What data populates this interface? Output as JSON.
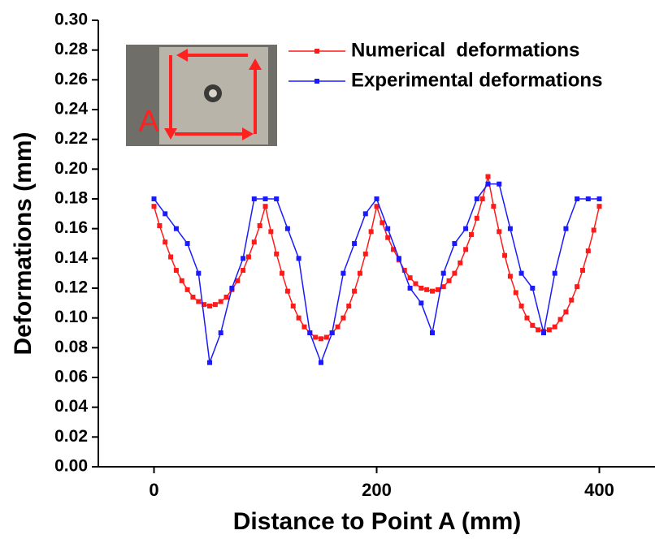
{
  "chart_data": {
    "type": "line",
    "x_label": "Distance to Point A (mm)",
    "y_label": "Deformations (mm)",
    "annotations": [
      "A"
    ],
    "xlim": [
      -50,
      450
    ],
    "xticks": [
      0,
      200,
      400
    ],
    "ylim": [
      0,
      0.3
    ],
    "yticks": [
      {
        "value": 0,
        "label": "0.00"
      },
      0.02,
      0.04,
      0.06,
      0.08,
      {
        "value": 0.1,
        "label": "0.10"
      },
      0.12,
      0.14,
      0.16,
      0.18,
      {
        "value": 0.2,
        "label": "0.20"
      },
      0.22,
      0.24,
      0.26,
      0.28,
      {
        "value": 0.3,
        "label": "0.30"
      }
    ],
    "legend": "upper right",
    "series": [
      {
        "name": "Numerical  deformations",
        "color": "#ff1a1a",
        "x": [
          0,
          5,
          10,
          15,
          20,
          25,
          30,
          35,
          40,
          45,
          50,
          55,
          60,
          65,
          70,
          75,
          80,
          85,
          90,
          95,
          100,
          105,
          110,
          115,
          120,
          125,
          130,
          135,
          140,
          145,
          150,
          155,
          160,
          165,
          170,
          175,
          180,
          185,
          190,
          195,
          200,
          205,
          210,
          215,
          220,
          225,
          230,
          235,
          240,
          245,
          250,
          255,
          260,
          265,
          270,
          275,
          280,
          285,
          290,
          295,
          300,
          305,
          310,
          315,
          320,
          325,
          330,
          335,
          340,
          345,
          350,
          355,
          360,
          365,
          370,
          375,
          380,
          385,
          390,
          395,
          400
        ],
        "values": [
          0.175,
          0.162,
          0.151,
          0.141,
          0.132,
          0.125,
          0.119,
          0.114,
          0.111,
          0.109,
          0.108,
          0.109,
          0.111,
          0.114,
          0.119,
          0.125,
          0.132,
          0.141,
          0.151,
          0.162,
          0.175,
          0.158,
          0.143,
          0.13,
          0.118,
          0.108,
          0.1,
          0.094,
          0.09,
          0.087,
          0.086,
          0.087,
          0.09,
          0.094,
          0.1,
          0.108,
          0.118,
          0.13,
          0.143,
          0.158,
          0.175,
          0.164,
          0.154,
          0.146,
          0.139,
          0.132,
          0.127,
          0.123,
          0.12,
          0.119,
          0.118,
          0.119,
          0.121,
          0.125,
          0.13,
          0.137,
          0.146,
          0.156,
          0.167,
          0.18,
          0.195,
          0.175,
          0.158,
          0.142,
          0.128,
          0.117,
          0.108,
          0.1,
          0.095,
          0.092,
          0.091,
          0.092,
          0.094,
          0.099,
          0.104,
          0.112,
          0.121,
          0.132,
          0.145,
          0.159,
          0.175
        ]
      },
      {
        "name": "Experimental deformations",
        "color": "#1a1aff",
        "x": [
          0,
          10,
          20,
          30,
          40,
          50,
          60,
          70,
          80,
          90,
          100,
          110,
          120,
          130,
          140,
          150,
          160,
          170,
          180,
          190,
          200,
          210,
          220,
          230,
          240,
          250,
          260,
          270,
          280,
          290,
          300,
          310,
          320,
          330,
          340,
          350,
          360,
          370,
          380,
          390,
          400
        ],
        "values": [
          0.18,
          0.17,
          0.16,
          0.15,
          0.13,
          0.07,
          0.09,
          0.12,
          0.14,
          0.18,
          0.18,
          0.18,
          0.16,
          0.14,
          0.09,
          0.07,
          0.09,
          0.13,
          0.15,
          0.17,
          0.18,
          0.16,
          0.14,
          0.12,
          0.11,
          0.09,
          0.13,
          0.15,
          0.16,
          0.18,
          0.19,
          0.19,
          0.16,
          0.13,
          0.12,
          0.09,
          0.13,
          0.16,
          0.18,
          0.18,
          0.18
        ]
      }
    ]
  }
}
